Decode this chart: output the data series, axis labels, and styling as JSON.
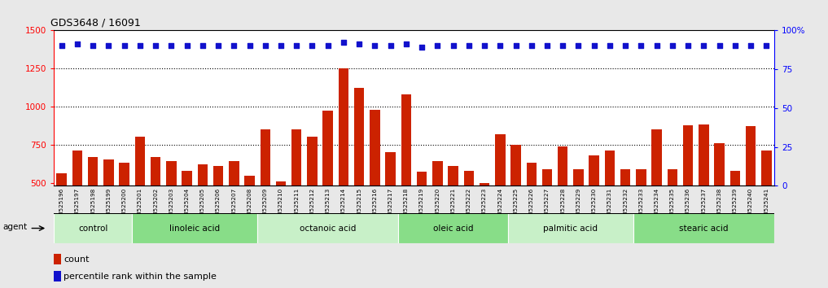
{
  "title": "GDS3648 / 16091",
  "samples": [
    "GSM525196",
    "GSM525197",
    "GSM525198",
    "GSM525199",
    "GSM525200",
    "GSM525201",
    "GSM525202",
    "GSM525203",
    "GSM525204",
    "GSM525205",
    "GSM525206",
    "GSM525207",
    "GSM525208",
    "GSM525209",
    "GSM525210",
    "GSM525211",
    "GSM525212",
    "GSM525213",
    "GSM525214",
    "GSM525215",
    "GSM525216",
    "GSM525217",
    "GSM525218",
    "GSM525219",
    "GSM525220",
    "GSM525221",
    "GSM525222",
    "GSM525223",
    "GSM525224",
    "GSM525225",
    "GSM525226",
    "GSM525227",
    "GSM525228",
    "GSM525229",
    "GSM525230",
    "GSM525231",
    "GSM525232",
    "GSM525233",
    "GSM525234",
    "GSM525235",
    "GSM525236",
    "GSM525237",
    "GSM525238",
    "GSM525239",
    "GSM525240",
    "GSM525241"
  ],
  "counts": [
    560,
    710,
    670,
    650,
    630,
    800,
    670,
    640,
    580,
    620,
    610,
    640,
    545,
    850,
    510,
    850,
    800,
    970,
    1250,
    1120,
    980,
    700,
    1080,
    570,
    640,
    610,
    580,
    500,
    820,
    750,
    630,
    590,
    740,
    590,
    680,
    710,
    590,
    590,
    850,
    590,
    875,
    880,
    760,
    580,
    870,
    710
  ],
  "percentile_ranks": [
    90,
    91,
    90,
    90,
    90,
    90,
    90,
    90,
    90,
    90,
    90,
    90,
    90,
    90,
    90,
    90,
    90,
    90,
    92,
    91,
    90,
    90,
    91,
    89,
    90,
    90,
    90,
    90,
    90,
    90,
    90,
    90,
    90,
    90,
    90,
    90,
    90,
    90,
    90,
    90,
    90,
    90,
    90,
    90,
    90,
    90
  ],
  "groups": [
    {
      "label": "control",
      "start": 0,
      "end": 4,
      "color": "#c8f0c8"
    },
    {
      "label": "linoleic acid",
      "start": 5,
      "end": 12,
      "color": "#88dd88"
    },
    {
      "label": "octanoic acid",
      "start": 13,
      "end": 21,
      "color": "#c8f0c8"
    },
    {
      "label": "oleic acid",
      "start": 22,
      "end": 28,
      "color": "#88dd88"
    },
    {
      "label": "palmitic acid",
      "start": 29,
      "end": 36,
      "color": "#c8f0c8"
    },
    {
      "label": "stearic acid",
      "start": 37,
      "end": 45,
      "color": "#88dd88"
    }
  ],
  "bar_color": "#cc2200",
  "dot_color": "#1111cc",
  "left_ylim": [
    480,
    1500
  ],
  "right_ylim": [
    0,
    100
  ],
  "left_yticks": [
    500,
    750,
    1000,
    1250,
    1500
  ],
  "right_yticks": [
    0,
    25,
    50,
    75,
    100
  ],
  "grid_values": [
    750,
    1000,
    1250
  ],
  "figure_bg": "#e8e8e8",
  "plot_bg": "#ffffff",
  "xticklabel_bg": "#d8d8d8"
}
